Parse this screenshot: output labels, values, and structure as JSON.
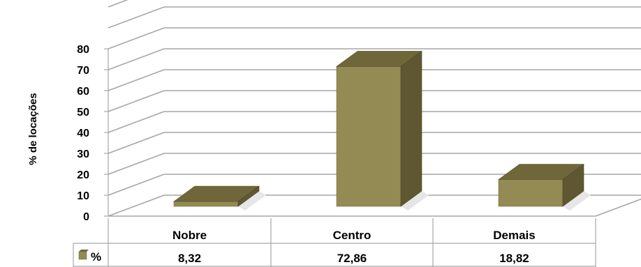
{
  "chart_data": {
    "type": "bar",
    "ylabel": "% de locações",
    "ylim": [
      0,
      80
    ],
    "ytick_labels": [
      "0",
      "10",
      "20",
      "30",
      "40",
      "50",
      "60",
      "70",
      "80"
    ],
    "categories": [
      "Nobre",
      "Centro",
      "Demais"
    ],
    "series": [
      {
        "name": "%",
        "values": [
          8.32,
          72.86,
          18.82
        ],
        "value_labels": [
          "8,32",
          "72,86",
          "18,82"
        ],
        "color": "#948a54"
      }
    ],
    "grid": true,
    "data_table": true,
    "style": "3d-column"
  }
}
